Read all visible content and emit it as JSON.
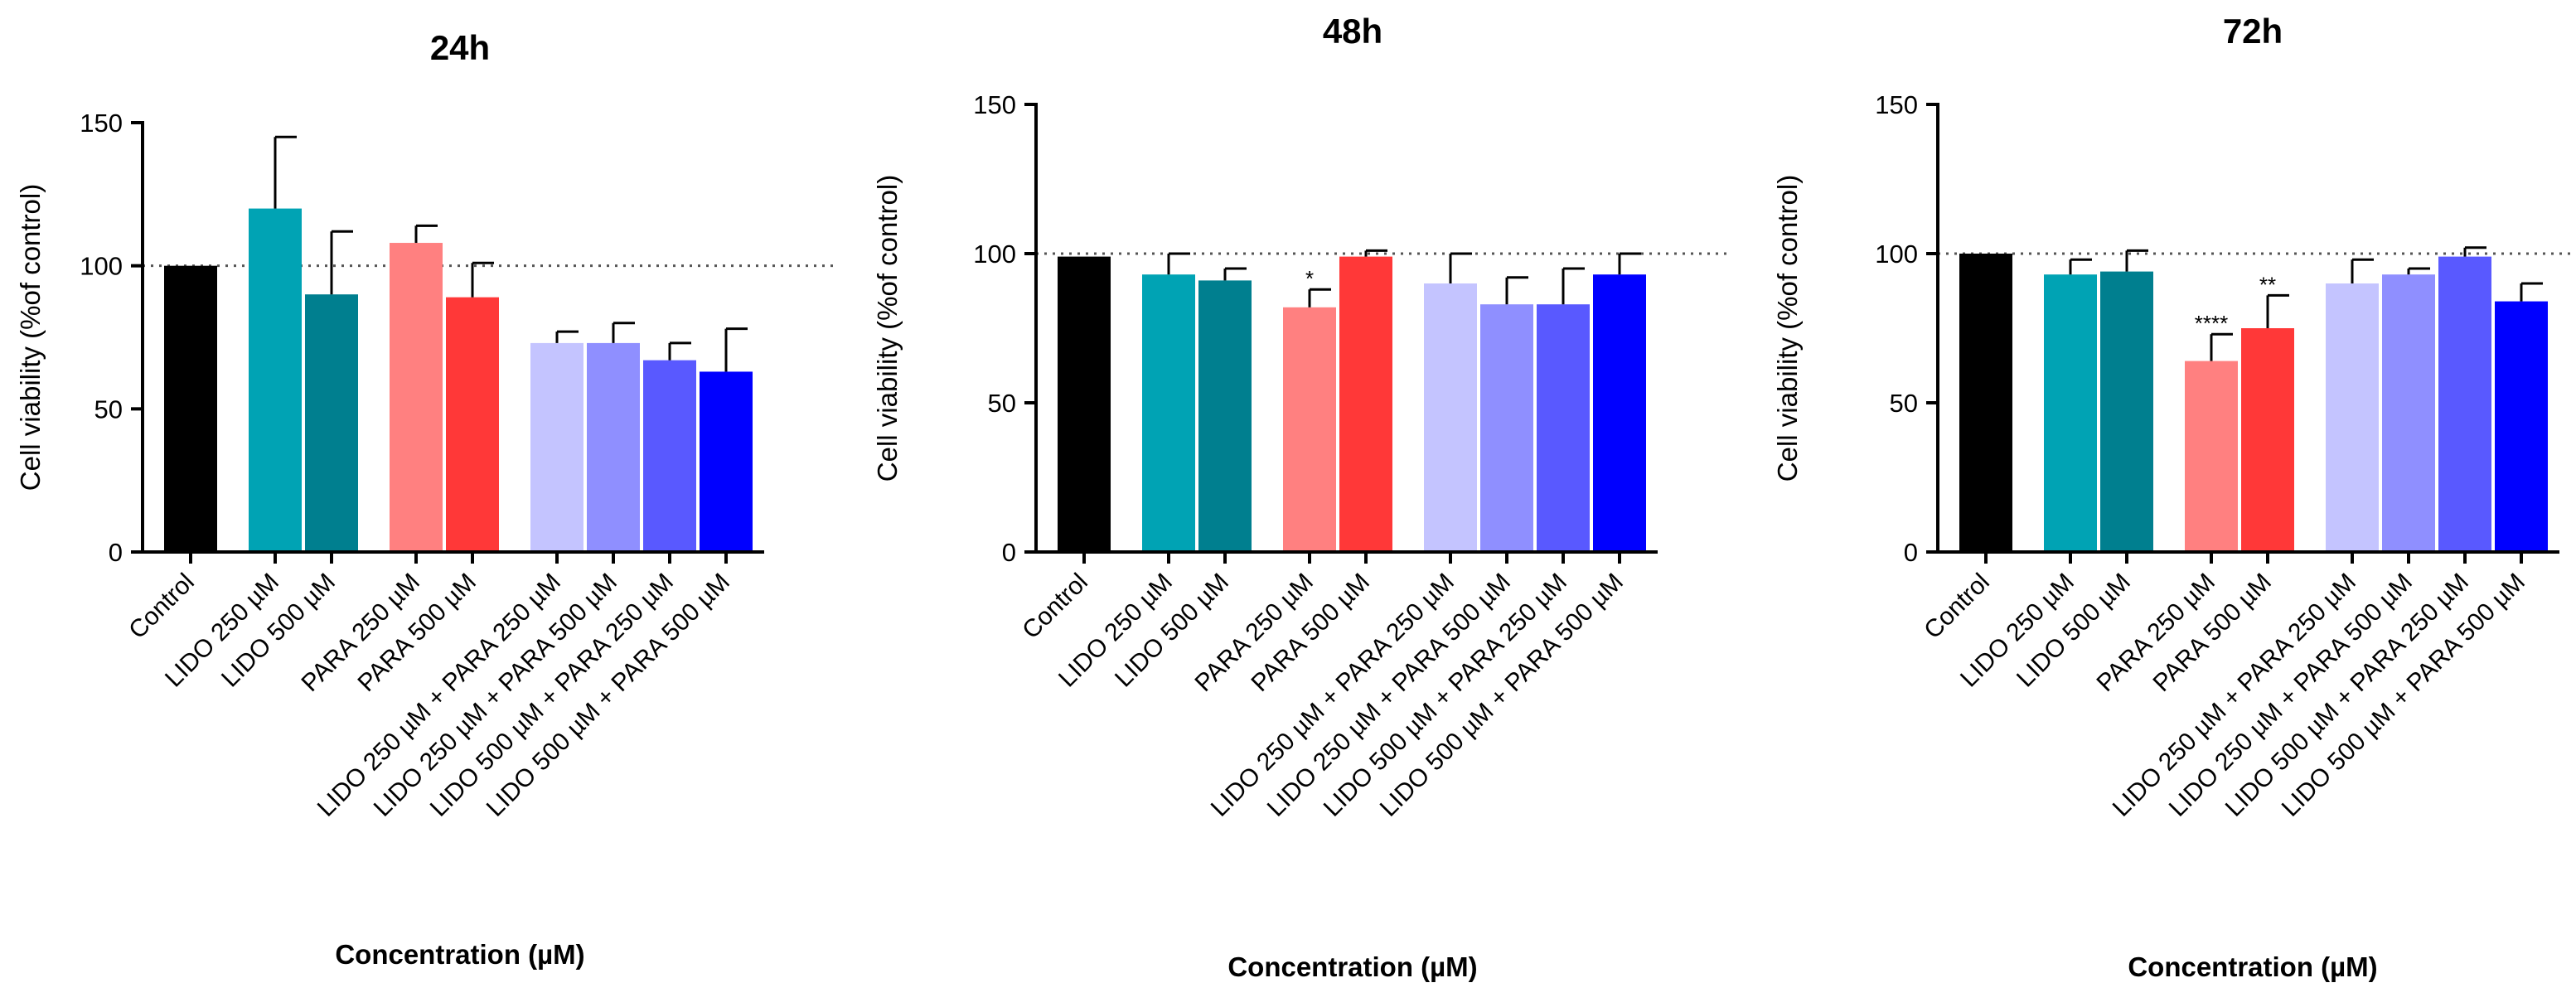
{
  "figure": {
    "background": "#ffffff"
  },
  "chart_data": [
    {
      "type": "bar",
      "title": "24h",
      "xlabel": "Concentration (µM)",
      "ylabel": "Cell viability (%of control)",
      "ylim": [
        0,
        150
      ],
      "yticks": [
        0,
        50,
        100,
        150
      ],
      "reference_line": 100,
      "categories": [
        "Control",
        "LIDO 250 µM",
        "LIDO 500 µM",
        "PARA 250 µM",
        "PARA 500 µM",
        "LIDO 250 µM + PARA 250 µM",
        "LIDO 250 µM + PARA 500 µM",
        "LIDO 500 µM + PARA 250 µM",
        "LIDO 500 µM + PARA 500 µM"
      ],
      "group_index": [
        0,
        1,
        1,
        2,
        2,
        3,
        3,
        3,
        3
      ],
      "values": [
        100,
        120,
        90,
        108,
        89,
        73,
        73,
        67,
        63
      ],
      "errors": [
        0,
        25,
        22,
        6,
        12,
        4,
        7,
        6,
        15
      ],
      "colors": [
        "#000000",
        "#00a3b4",
        "#007f8f",
        "#ff8080",
        "#ff3838",
        "#c4c4ff",
        "#8f8fff",
        "#5959ff",
        "#0000ff"
      ],
      "annotations": [
        "",
        "",
        "",
        "",
        "",
        "",
        "",
        "",
        ""
      ]
    },
    {
      "type": "bar",
      "title": "48h",
      "xlabel": "Concentration (µM)",
      "ylabel": "Cell viability (%of control)",
      "ylim": [
        0,
        150
      ],
      "yticks": [
        0,
        50,
        100,
        150
      ],
      "reference_line": 100,
      "categories": [
        "Control",
        "LIDO 250 µM",
        "LIDO 500 µM",
        "PARA 250 µM",
        "PARA 500 µM",
        "LIDO 250 µM + PARA 250 µM",
        "LIDO 250 µM + PARA 500 µM",
        "LIDO 500 µM + PARA 250 µM",
        "LIDO 500 µM + PARA 500 µM"
      ],
      "group_index": [
        0,
        1,
        1,
        2,
        2,
        3,
        3,
        3,
        3
      ],
      "values": [
        99,
        93,
        91,
        82,
        99,
        90,
        83,
        83,
        93
      ],
      "errors": [
        0,
        7,
        4,
        6,
        2,
        10,
        9,
        12,
        7
      ],
      "colors": [
        "#000000",
        "#00a3b4",
        "#007f8f",
        "#ff8080",
        "#ff3838",
        "#c4c4ff",
        "#8f8fff",
        "#5959ff",
        "#0000ff"
      ],
      "annotations": [
        "",
        "",
        "",
        "*",
        "",
        "",
        "",
        "",
        ""
      ]
    },
    {
      "type": "bar",
      "title": "72h",
      "xlabel": "Concentration (µM)",
      "ylabel": "Cell viability (%of control)",
      "ylim": [
        0,
        150
      ],
      "yticks": [
        0,
        50,
        100,
        150
      ],
      "reference_line": 100,
      "categories": [
        "Control",
        "LIDO 250 µM",
        "LIDO 500 µM",
        "PARA 250 µM",
        "PARA 500 µM",
        "LIDO 250 µM + PARA 250 µM",
        "LIDO 250 µM + PARA 500 µM",
        "LIDO 500 µM + PARA 250 µM",
        "LIDO 500 µM + PARA 500 µM"
      ],
      "group_index": [
        0,
        1,
        1,
        2,
        2,
        3,
        3,
        3,
        3
      ],
      "values": [
        100,
        93,
        94,
        64,
        75,
        90,
        93,
        99,
        84
      ],
      "errors": [
        0,
        5,
        7,
        9,
        11,
        8,
        2,
        3,
        6
      ],
      "colors": [
        "#000000",
        "#00a3b4",
        "#007f8f",
        "#ff8080",
        "#ff3838",
        "#c4c4ff",
        "#8f8fff",
        "#5959ff",
        "#0000ff"
      ],
      "annotations": [
        "",
        "",
        "",
        "****",
        "**",
        "",
        "",
        "",
        ""
      ]
    }
  ]
}
